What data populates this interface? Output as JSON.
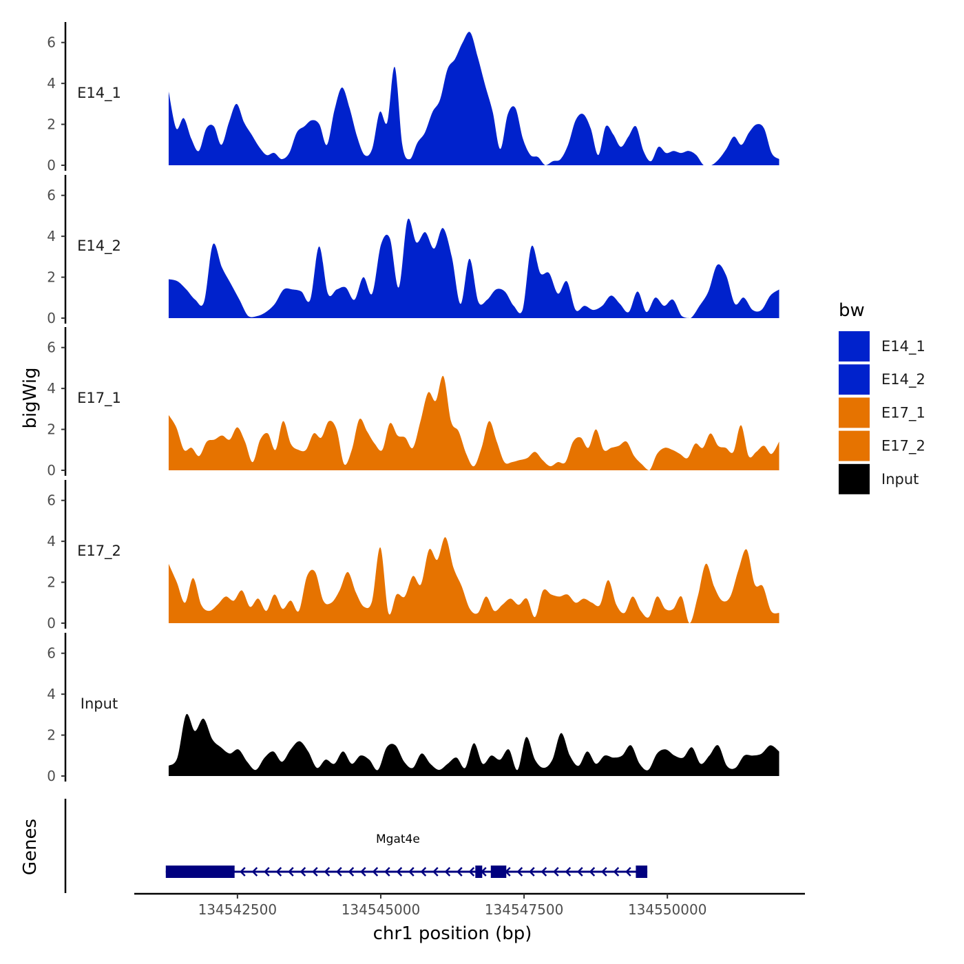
{
  "chart_data": {
    "type": "area",
    "ylabel": "bigWig",
    "xlabel": "chr1 position (bp)",
    "xlim": [
      134540700,
      134552400
    ],
    "x_range": [
      134541300,
      134551950
    ],
    "ylim": [
      0,
      7
    ],
    "y_ticks": [
      0,
      2,
      4,
      6
    ],
    "y_tick_labels": [
      "0",
      "2",
      "4",
      "6"
    ],
    "x_ticks": [
      134542500,
      134545000,
      134547500,
      134550000
    ],
    "x_tick_labels": [
      "134542500",
      "134545000",
      "134547500",
      "134550000"
    ],
    "legend": {
      "title": "bw",
      "position": "right",
      "entries": [
        {
          "label": "E14_1",
          "color": "#0022cc"
        },
        {
          "label": "E14_2",
          "color": "#0022cc"
        },
        {
          "label": "E17_1",
          "color": "#e67300"
        },
        {
          "label": "E17_2",
          "color": "#e67300"
        },
        {
          "label": "Input",
          "color": "#000000"
        }
      ]
    },
    "series": [
      {
        "name": "E14_1",
        "label": "E14_1",
        "color": "#0022cc",
        "values": [
          3.6,
          1.8,
          2.3,
          1.3,
          0.7,
          1.8,
          1.9,
          1.0,
          2.1,
          3.0,
          2.1,
          1.5,
          0.9,
          0.5,
          0.6,
          0.3,
          0.6,
          1.6,
          1.9,
          2.2,
          2.0,
          1.0,
          2.7,
          3.8,
          2.8,
          1.4,
          0.5,
          0.8,
          2.6,
          2.1,
          4.8,
          1.0,
          0.3,
          1.1,
          1.6,
          2.6,
          3.2,
          4.7,
          5.2,
          6.0,
          6.5,
          5.3,
          3.9,
          2.6,
          0.8,
          2.5,
          2.8,
          1.3,
          0.5,
          0.4,
          0.0,
          0.2,
          0.3,
          1.0,
          2.2,
          2.5,
          1.8,
          0.5,
          1.9,
          1.5,
          0.9,
          1.4,
          1.9,
          0.7,
          0.2,
          0.9,
          0.6,
          0.7,
          0.6,
          0.7,
          0.5,
          0.0,
          0.0,
          0.3,
          0.8,
          1.4,
          1.0,
          1.6,
          2.0,
          1.8,
          0.6,
          0.3
        ]
      },
      {
        "name": "E14_2",
        "label": "E14_2",
        "color": "#0022cc",
        "values": [
          1.9,
          1.8,
          1.4,
          0.9,
          0.8,
          3.6,
          2.5,
          1.7,
          0.9,
          0.1,
          0.1,
          0.3,
          0.7,
          1.4,
          1.4,
          1.3,
          0.9,
          3.5,
          1.2,
          1.4,
          1.5,
          0.9,
          2.0,
          1.2,
          3.6,
          3.9,
          1.5,
          4.8,
          3.7,
          4.2,
          3.4,
          4.4,
          3.0,
          0.7,
          2.9,
          0.8,
          0.9,
          1.4,
          1.3,
          0.6,
          0.4,
          3.5,
          2.2,
          2.2,
          1.2,
          1.8,
          0.4,
          0.6,
          0.4,
          0.6,
          1.1,
          0.7,
          0.3,
          1.3,
          0.3,
          1.0,
          0.6,
          0.9,
          0.1,
          0.0,
          0.6,
          1.3,
          2.6,
          2.1,
          0.7,
          1.0,
          0.4,
          0.4,
          1.1,
          1.4
        ]
      },
      {
        "name": "E17_1",
        "label": "E17_1",
        "color": "#e67300",
        "values": [
          2.7,
          2.1,
          1.0,
          1.1,
          0.7,
          1.4,
          1.5,
          1.7,
          1.5,
          2.1,
          1.4,
          0.4,
          1.5,
          1.8,
          1.0,
          2.4,
          1.3,
          1.0,
          1.0,
          1.8,
          1.6,
          2.4,
          2.0,
          0.3,
          1.0,
          2.5,
          1.9,
          1.3,
          1.0,
          2.3,
          1.7,
          1.6,
          1.1,
          2.4,
          3.8,
          3.4,
          4.6,
          2.4,
          1.9,
          0.8,
          0.2,
          1.1,
          2.4,
          1.4,
          0.4,
          0.4,
          0.5,
          0.6,
          0.9,
          0.5,
          0.2,
          0.4,
          0.4,
          1.4,
          1.6,
          1.1,
          2.0,
          1.0,
          1.1,
          1.2,
          1.4,
          0.7,
          0.3,
          0.0,
          0.8,
          1.1,
          1.0,
          0.8,
          0.6,
          1.3,
          1.1,
          1.8,
          1.2,
          1.1,
          0.9,
          2.2,
          0.7,
          0.9,
          1.2,
          0.8,
          1.4
        ]
      },
      {
        "name": "E17_2",
        "label": "E17_2",
        "color": "#e67300",
        "values": [
          2.9,
          2.0,
          1.0,
          2.2,
          0.9,
          0.6,
          0.9,
          1.3,
          1.1,
          1.6,
          0.8,
          1.2,
          0.6,
          1.4,
          0.7,
          1.1,
          0.6,
          2.3,
          2.5,
          1.1,
          1.0,
          1.6,
          2.5,
          1.5,
          0.8,
          1.1,
          3.7,
          0.5,
          1.4,
          1.3,
          2.3,
          1.9,
          3.6,
          3.1,
          4.2,
          2.7,
          1.8,
          0.7,
          0.5,
          1.3,
          0.6,
          0.9,
          1.2,
          0.9,
          1.2,
          0.3,
          1.6,
          1.4,
          1.3,
          1.4,
          1.0,
          1.2,
          1.0,
          0.9,
          2.1,
          0.9,
          0.5,
          1.3,
          0.6,
          0.3,
          1.3,
          0.7,
          0.7,
          1.3,
          0.0,
          1.3,
          2.9,
          1.8,
          1.1,
          1.3,
          2.6,
          3.6,
          1.9,
          1.8,
          0.6,
          0.5
        ]
      },
      {
        "name": "Input",
        "label": "Input",
        "color": "#000000",
        "values": [
          0.5,
          0.9,
          3.0,
          2.2,
          2.8,
          1.8,
          1.4,
          1.1,
          1.3,
          0.7,
          0.3,
          0.9,
          1.2,
          0.7,
          1.3,
          1.7,
          1.2,
          0.4,
          0.8,
          0.6,
          1.2,
          0.6,
          1.0,
          0.8,
          0.3,
          1.4,
          1.5,
          0.7,
          0.4,
          1.1,
          0.6,
          0.3,
          0.6,
          0.9,
          0.4,
          1.6,
          0.6,
          1.0,
          0.8,
          1.3,
          0.3,
          1.9,
          0.8,
          0.4,
          0.8,
          2.1,
          1.0,
          0.5,
          1.2,
          0.6,
          1.0,
          0.9,
          1.0,
          1.5,
          0.6,
          0.3,
          1.1,
          1.3,
          1.0,
          0.9,
          1.4,
          0.6,
          1.0,
          1.5,
          0.5,
          0.4,
          1.0,
          1.0,
          1.1,
          1.5,
          1.2
        ]
      }
    ],
    "genes": {
      "title": "Genes",
      "name": "Mgat4e",
      "name_at": 134545300,
      "strand": "-",
      "start": 134541250,
      "end": 134549650,
      "exons": [
        {
          "start": 134541250,
          "end": 134542450
        },
        {
          "start": 134546650,
          "end": 134546770
        },
        {
          "start": 134546920,
          "end": 134547190
        },
        {
          "start": 134549450,
          "end": 134549650
        }
      ]
    }
  }
}
